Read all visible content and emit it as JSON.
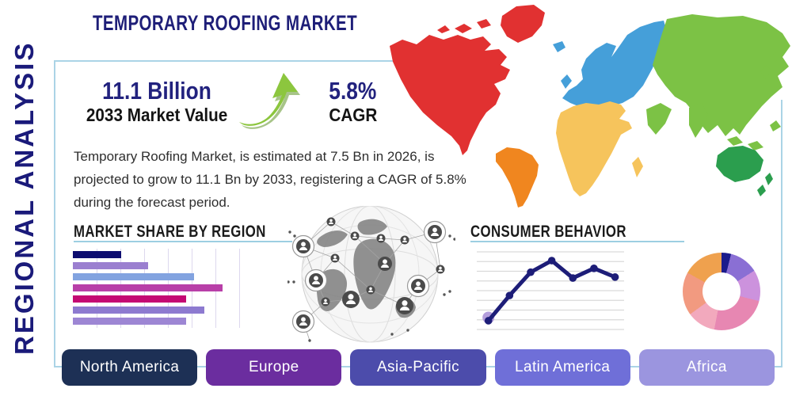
{
  "header": {
    "title": "TEMPORARY ROOFING MARKET",
    "side_label": "REGIONAL ANALYSIS"
  },
  "stats": {
    "market_value": "11.1 Billion",
    "market_value_label": "2033 Market Value",
    "cagr_value": "5.8%",
    "cagr_label": "CAGR",
    "growth_arrow_color": "#8cc63e"
  },
  "description": "Temporary Roofing Market, is estimated at 7.5 Bn in 2026, is projected to grow to 11.1 Bn by 2033, registering a CAGR of 5.8% during the forecast period.",
  "frame_color": "#abd4e6",
  "map": {
    "continents": [
      {
        "name": "North America",
        "color": "#e13131"
      },
      {
        "name": "South America",
        "color": "#f0861f"
      },
      {
        "name": "Europe",
        "color": "#459fd9"
      },
      {
        "name": "Africa",
        "color": "#f6c45c"
      },
      {
        "name": "Asia",
        "color": "#7cc245"
      },
      {
        "name": "Australia",
        "color": "#2b9e4e"
      }
    ]
  },
  "region_buttons": [
    {
      "label": "North America",
      "color": "#1d3055"
    },
    {
      "label": "Europe",
      "color": "#6b2d9f"
    },
    {
      "label": "Asia-Pacific",
      "color": "#4c4cab"
    },
    {
      "label": "Latin America",
      "color": "#6f6fd8"
    },
    {
      "label": "Africa",
      "color": "#9b95df"
    }
  ],
  "chart_data": [
    {
      "type": "bar",
      "title": "MARKET SHARE BY REGION",
      "orientation": "horizontal",
      "categories": [
        "",
        "",
        "",
        "",
        "",
        "",
        ""
      ],
      "values": [
        29,
        45,
        73,
        90,
        68,
        79,
        68
      ],
      "xlim": [
        0,
        100
      ],
      "axis_labels_visible": false,
      "grid": "vertical",
      "colors": [
        "#0d0d70",
        "#9b7fd0",
        "#82a3e0",
        "#b83fa8",
        "#c40873",
        "#8d7ad0",
        "#9d86d4"
      ]
    },
    {
      "type": "line",
      "title": "CONSUMER BEHAVIOR",
      "x": [
        1,
        2,
        3,
        4,
        5,
        6,
        7
      ],
      "y": [
        0.9,
        3.5,
        5.9,
        7.1,
        5.3,
        6.3,
        5.4
      ],
      "ylim": [
        0,
        8
      ],
      "axis_labels_visible": false,
      "grid": "horizontal",
      "line_color": "#1d1d78",
      "marker": "circle",
      "first_point_halo_color": "#b39ddb"
    },
    {
      "type": "donut",
      "title": "",
      "labels_visible": false,
      "slices": [
        {
          "value": 4,
          "color": "#1b1b8c"
        },
        {
          "value": 12,
          "color": "#8a6fd4"
        },
        {
          "value": 13,
          "color": "#cc92dd"
        },
        {
          "value": 24,
          "color": "#e787b2"
        },
        {
          "value": 12,
          "color": "#f2a9bd"
        },
        {
          "value": 18,
          "color": "#f29a80"
        },
        {
          "value": 17,
          "color": "#efa14e"
        }
      ]
    }
  ]
}
